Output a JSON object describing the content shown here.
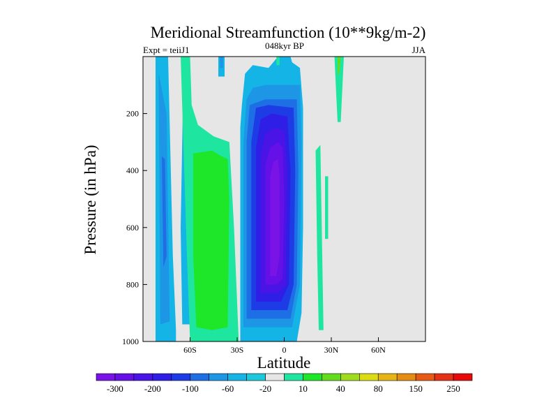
{
  "chart_data": {
    "type": "heatmap",
    "title": "Meridional Streamfunction (10**9kg/m-2)",
    "subtitle_left": "Expt = teiiJ1",
    "subtitle_center": "048kyr BP",
    "subtitle_right": "JJA",
    "xlabel": "Latitude",
    "ylabel": "Pressure (in hPa)",
    "xlim": [
      -90,
      90
    ],
    "ylim": [
      1000,
      0
    ],
    "x_ticks": [
      {
        "value": -60,
        "label": "60S"
      },
      {
        "value": -30,
        "label": "30S"
      },
      {
        "value": 0,
        "label": "0"
      },
      {
        "value": 30,
        "label": "30N"
      },
      {
        "value": 60,
        "label": "60N"
      }
    ],
    "y_ticks": [
      {
        "value": 200,
        "label": "200"
      },
      {
        "value": 400,
        "label": "400"
      },
      {
        "value": 600,
        "label": "600"
      },
      {
        "value": 800,
        "label": "800"
      },
      {
        "value": 1000,
        "label": "1000"
      }
    ],
    "colorbar": {
      "colors": [
        "#7a14e6",
        "#6410e6",
        "#4a14e6",
        "#2e1ee6",
        "#1e3ce6",
        "#1e6ee6",
        "#1e96e6",
        "#14b4e6",
        "#1ec8dc",
        "#e6e6e6",
        "#1ee6a0",
        "#1ee628",
        "#64dc1e",
        "#a0dc1e",
        "#dcdc14",
        "#e6b414",
        "#e68c14",
        "#e65a14",
        "#e63214",
        "#e60a0a"
      ],
      "labels": [
        {
          "boundary": 1,
          "text": "-300"
        },
        {
          "boundary": 3,
          "text": "-200"
        },
        {
          "boundary": 5,
          "text": "-100"
        },
        {
          "boundary": 7,
          "text": "-60"
        },
        {
          "boundary": 9,
          "text": "-20"
        },
        {
          "boundary": 11,
          "text": "10"
        },
        {
          "boundary": 13,
          "text": "40"
        },
        {
          "boundary": 15,
          "text": "80"
        },
        {
          "boundary": 17,
          "text": "150"
        },
        {
          "boundary": 19,
          "text": "250"
        }
      ]
    },
    "field_regions": [
      {
        "color": "#14b4e6",
        "points": [
          [
            -82,
            0
          ],
          [
            -82,
            1000
          ],
          [
            -69,
            1000
          ],
          [
            -69,
            960
          ],
          [
            -71,
            700
          ],
          [
            -74,
            0
          ]
        ]
      },
      {
        "color": "#1e96e6",
        "points": [
          [
            -80,
            60
          ],
          [
            -79,
            940
          ],
          [
            -73,
            930
          ],
          [
            -75,
            200
          ]
        ]
      },
      {
        "color": "#1e6ee6",
        "points": [
          [
            -78,
            350
          ],
          [
            -77,
            740
          ],
          [
            -75,
            700
          ],
          [
            -76,
            360
          ]
        ]
      },
      {
        "color": "#14b4e6",
        "points": [
          [
            -64,
            0
          ],
          [
            -60,
            0
          ],
          [
            -59,
            940
          ],
          [
            -65,
            940
          ],
          [
            -66,
            600
          ]
        ]
      },
      {
        "color": "#1ee6a0",
        "points": [
          [
            -66,
            0
          ],
          [
            -60,
            0
          ],
          [
            -59,
            170
          ],
          [
            -55,
            240
          ],
          [
            -45,
            280
          ],
          [
            -35,
            300
          ],
          [
            -32,
            600
          ],
          [
            -29,
            1000
          ],
          [
            -60,
            1000
          ],
          [
            -62,
            700
          ]
        ]
      },
      {
        "color": "#1ee628",
        "points": [
          [
            -58,
            340
          ],
          [
            -46,
            330
          ],
          [
            -40,
            350
          ],
          [
            -36,
            360
          ],
          [
            -35,
            500
          ],
          [
            -36,
            950
          ],
          [
            -46,
            960
          ],
          [
            -56,
            950
          ],
          [
            -58,
            700
          ]
        ]
      },
      {
        "color": "#14b4e6",
        "points": [
          [
            -42,
            0
          ],
          [
            -38,
            0
          ],
          [
            -38,
            70
          ],
          [
            -42,
            70
          ]
        ]
      },
      {
        "color": "#1e96e6",
        "points": [
          [
            -41,
            0
          ],
          [
            -39,
            0
          ],
          [
            -39,
            40
          ],
          [
            -41,
            40
          ]
        ]
      },
      {
        "color": "#14b4e6",
        "points": [
          [
            -28,
            1000
          ],
          [
            -28,
            250
          ],
          [
            -27,
            170
          ],
          [
            -25,
            60
          ],
          [
            -20,
            30
          ],
          [
            -10,
            40
          ],
          [
            -7,
            20
          ],
          [
            -4,
            0
          ],
          [
            4,
            0
          ],
          [
            5,
            20
          ],
          [
            10,
            40
          ],
          [
            12,
            180
          ],
          [
            12,
            600
          ],
          [
            11,
            900
          ],
          [
            8,
            1000
          ]
        ]
      },
      {
        "color": "#1e96e6",
        "points": [
          [
            -26,
            950
          ],
          [
            -26,
            300
          ],
          [
            -24,
            150
          ],
          [
            -20,
            110
          ],
          [
            -12,
            100
          ],
          [
            10,
            100
          ],
          [
            11,
            300
          ],
          [
            10,
            800
          ],
          [
            5,
            950
          ]
        ]
      },
      {
        "color": "#1e6ee6",
        "points": [
          [
            -24,
            920
          ],
          [
            -24,
            300
          ],
          [
            -22,
            170
          ],
          [
            -12,
            150
          ],
          [
            8,
            150
          ],
          [
            9,
            400
          ],
          [
            8,
            800
          ],
          [
            4,
            920
          ]
        ]
      },
      {
        "color": "#1e3ce6",
        "points": [
          [
            -21,
            890
          ],
          [
            -21,
            300
          ],
          [
            -18,
            180
          ],
          [
            -10,
            170
          ],
          [
            6,
            180
          ],
          [
            7,
            400
          ],
          [
            6,
            800
          ],
          [
            2,
            890
          ]
        ]
      },
      {
        "color": "#2e1ee6",
        "points": [
          [
            -18,
            860
          ],
          [
            -18,
            320
          ],
          [
            -15,
            220
          ],
          [
            -8,
            200
          ],
          [
            2,
            210
          ],
          [
            4,
            400
          ],
          [
            3,
            800
          ],
          [
            -2,
            860
          ]
        ]
      },
      {
        "color": "#4a14e6",
        "points": [
          [
            -15,
            830
          ],
          [
            -15,
            340
          ],
          [
            -12,
            270
          ],
          [
            -6,
            250
          ],
          [
            0,
            260
          ],
          [
            2,
            400
          ],
          [
            1,
            800
          ],
          [
            -4,
            830
          ]
        ]
      },
      {
        "color": "#6410e6",
        "points": [
          [
            -12,
            800
          ],
          [
            -12,
            380
          ],
          [
            -9,
            320
          ],
          [
            -4,
            300
          ],
          [
            -1,
            320
          ],
          [
            0,
            500
          ],
          [
            -1,
            780
          ],
          [
            -5,
            800
          ]
        ]
      },
      {
        "color": "#7a14e6",
        "points": [
          [
            -9,
            770
          ],
          [
            -9,
            420
          ],
          [
            -7,
            370
          ],
          [
            -4,
            360
          ],
          [
            -3,
            420
          ],
          [
            -3,
            700
          ],
          [
            -5,
            770
          ]
        ]
      },
      {
        "color": "#1ee6a0",
        "points": [
          [
            -5,
            0
          ],
          [
            -3,
            0
          ],
          [
            -3,
            30
          ],
          [
            -5,
            30
          ]
        ]
      },
      {
        "color": "#1ee6a0",
        "points": [
          [
            20,
            330
          ],
          [
            23,
            310
          ],
          [
            25,
            960
          ],
          [
            22,
            960
          ],
          [
            21,
            700
          ]
        ]
      },
      {
        "color": "#1ee6a0",
        "points": [
          [
            26,
            420
          ],
          [
            28,
            420
          ],
          [
            28,
            640
          ],
          [
            26,
            640
          ]
        ]
      },
      {
        "color": "#1ee6a0",
        "points": [
          [
            32,
            0
          ],
          [
            38,
            0
          ],
          [
            36,
            230
          ],
          [
            34,
            230
          ],
          [
            33,
            120
          ]
        ]
      },
      {
        "color": "#64dc1e",
        "points": [
          [
            34,
            0
          ],
          [
            36,
            0
          ],
          [
            35,
            60
          ],
          [
            34,
            60
          ]
        ]
      }
    ]
  }
}
